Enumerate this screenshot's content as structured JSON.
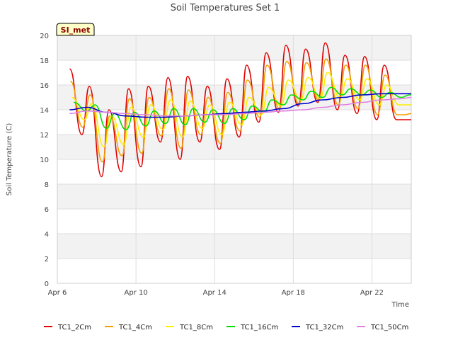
{
  "chart_data": {
    "type": "line",
    "title": "Soil Temperatures Set 1",
    "xlabel": "Time",
    "ylabel": "Soil Temperature (C)",
    "site_label": "SI_met",
    "xlim": [
      "2023-04-06",
      "2023-04-24"
    ],
    "ylim": [
      0,
      20
    ],
    "x_ticks": [
      "Apr 6",
      "Apr 10",
      "Apr 14",
      "Apr 18",
      "Apr 22"
    ],
    "y_ticks": [
      0,
      2,
      4,
      6,
      8,
      10,
      12,
      14,
      16,
      18,
      20
    ],
    "grid": true,
    "background": "alternating grey bands",
    "legend": "bottom",
    "series": [
      {
        "name": "TC1_2Cm",
        "color": "#e00000",
        "x": [
          "2023-04-06 15:00",
          "2023-04-07 06:00",
          "2023-04-07 15:00",
          "2023-04-08 06:00",
          "2023-04-08 15:00",
          "2023-04-09 06:00",
          "2023-04-09 15:00",
          "2023-04-10 06:00",
          "2023-04-10 15:00",
          "2023-04-11 06:00",
          "2023-04-11 15:00",
          "2023-04-12 06:00",
          "2023-04-12 15:00",
          "2023-04-13 06:00",
          "2023-04-13 15:00",
          "2023-04-14 06:00",
          "2023-04-14 15:00",
          "2023-04-15 06:00",
          "2023-04-15 15:00",
          "2023-04-16 06:00",
          "2023-04-16 15:00",
          "2023-04-17 06:00",
          "2023-04-17 15:00",
          "2023-04-18 06:00",
          "2023-04-18 15:00",
          "2023-04-19 06:00",
          "2023-04-19 15:00",
          "2023-04-20 06:00",
          "2023-04-20 15:00",
          "2023-04-21 06:00",
          "2023-04-21 15:00",
          "2023-04-22 06:00",
          "2023-04-22 15:00",
          "2023-04-23 06:00",
          "2023-04-23 15:00",
          "2023-04-24 00:00"
        ],
        "y": [
          17.3,
          12.0,
          15.9,
          8.6,
          14.0,
          9.0,
          15.7,
          9.4,
          15.9,
          11.4,
          16.6,
          10.0,
          16.7,
          11.4,
          15.9,
          10.8,
          16.5,
          11.8,
          17.6,
          13.0,
          18.6,
          13.8,
          19.2,
          14.3,
          18.9,
          14.6,
          19.4,
          14.0,
          18.4,
          13.7,
          18.3,
          13.2,
          17.6,
          13.2,
          13.2,
          13.2
        ]
      },
      {
        "name": "TC1_4Cm",
        "color": "#f0a000",
        "x": [
          "2023-04-06 16:00",
          "2023-04-07 07:00",
          "2023-04-07 16:00",
          "2023-04-08 07:00",
          "2023-04-08 16:00",
          "2023-04-09 07:00",
          "2023-04-09 16:00",
          "2023-04-10 07:00",
          "2023-04-10 16:00",
          "2023-04-11 07:00",
          "2023-04-11 16:00",
          "2023-04-12 07:00",
          "2023-04-12 16:00",
          "2023-04-13 07:00",
          "2023-04-13 16:00",
          "2023-04-14 07:00",
          "2023-04-14 16:00",
          "2023-04-15 07:00",
          "2023-04-15 16:00",
          "2023-04-16 07:00",
          "2023-04-16 16:00",
          "2023-04-17 07:00",
          "2023-04-17 16:00",
          "2023-04-18 07:00",
          "2023-04-18 16:00",
          "2023-04-19 07:00",
          "2023-04-19 16:00",
          "2023-04-20 07:00",
          "2023-04-20 16:00",
          "2023-04-21 07:00",
          "2023-04-21 16:00",
          "2023-04-22 07:00",
          "2023-04-22 16:00",
          "2023-04-23 07:00",
          "2023-04-23 16:00",
          "2023-04-24 00:00"
        ],
        "y": [
          16.3,
          12.6,
          15.2,
          9.8,
          13.5,
          10.3,
          14.9,
          10.5,
          15.0,
          11.9,
          15.7,
          10.9,
          15.6,
          12.0,
          15.0,
          11.3,
          15.4,
          12.3,
          16.4,
          13.4,
          17.6,
          14.1,
          17.9,
          14.5,
          17.8,
          14.8,
          18.1,
          14.4,
          17.6,
          14.1,
          17.6,
          13.6,
          16.8,
          13.6,
          13.6,
          13.7
        ]
      },
      {
        "name": "TC1_8Cm",
        "color": "#ffee00",
        "x": [
          "2023-04-06 18:00",
          "2023-04-07 09:00",
          "2023-04-07 18:00",
          "2023-04-08 09:00",
          "2023-04-08 18:00",
          "2023-04-09 09:00",
          "2023-04-09 18:00",
          "2023-04-10 09:00",
          "2023-04-10 18:00",
          "2023-04-11 09:00",
          "2023-04-11 18:00",
          "2023-04-12 09:00",
          "2023-04-12 18:00",
          "2023-04-13 09:00",
          "2023-04-13 18:00",
          "2023-04-14 09:00",
          "2023-04-14 18:00",
          "2023-04-15 09:00",
          "2023-04-15 18:00",
          "2023-04-16 09:00",
          "2023-04-16 18:00",
          "2023-04-17 09:00",
          "2023-04-17 18:00",
          "2023-04-18 09:00",
          "2023-04-18 18:00",
          "2023-04-19 09:00",
          "2023-04-19 18:00",
          "2023-04-20 09:00",
          "2023-04-20 18:00",
          "2023-04-21 09:00",
          "2023-04-21 18:00",
          "2023-04-22 09:00",
          "2023-04-22 18:00",
          "2023-04-23 09:00",
          "2023-04-23 18:00",
          "2023-04-24 00:00"
        ],
        "y": [
          15.0,
          13.2,
          14.5,
          11.0,
          13.5,
          11.2,
          14.2,
          11.8,
          14.4,
          12.4,
          14.8,
          11.8,
          14.7,
          12.5,
          14.4,
          12.0,
          14.6,
          12.8,
          15.0,
          13.6,
          15.8,
          14.3,
          16.4,
          14.8,
          16.6,
          14.9,
          17.0,
          15.0,
          16.5,
          14.8,
          16.5,
          14.4,
          16.0,
          14.4,
          14.4,
          14.4
        ]
      },
      {
        "name": "TC1_16Cm",
        "color": "#00dd00",
        "x": [
          "2023-04-06 20:00",
          "2023-04-07 12:00",
          "2023-04-07 22:00",
          "2023-04-08 12:00",
          "2023-04-08 22:00",
          "2023-04-09 12:00",
          "2023-04-09 22:00",
          "2023-04-10 12:00",
          "2023-04-10 22:00",
          "2023-04-11 12:00",
          "2023-04-11 22:00",
          "2023-04-12 12:00",
          "2023-04-12 22:00",
          "2023-04-13 12:00",
          "2023-04-13 22:00",
          "2023-04-14 12:00",
          "2023-04-14 22:00",
          "2023-04-15 12:00",
          "2023-04-15 22:00",
          "2023-04-16 12:00",
          "2023-04-16 22:00",
          "2023-04-17 12:00",
          "2023-04-17 22:00",
          "2023-04-18 12:00",
          "2023-04-18 22:00",
          "2023-04-19 12:00",
          "2023-04-19 22:00",
          "2023-04-20 12:00",
          "2023-04-20 22:00",
          "2023-04-21 12:00",
          "2023-04-21 22:00",
          "2023-04-22 12:00",
          "2023-04-22 22:00",
          "2023-04-23 12:00",
          "2023-04-23 22:00",
          "2023-04-24 00:00"
        ],
        "y": [
          14.6,
          13.9,
          14.4,
          12.5,
          13.7,
          12.4,
          13.8,
          12.7,
          13.9,
          12.9,
          14.1,
          12.8,
          14.1,
          13.0,
          14.0,
          12.9,
          14.1,
          13.2,
          14.3,
          13.8,
          14.8,
          14.4,
          15.2,
          14.8,
          15.5,
          15.0,
          15.8,
          15.2,
          15.7,
          15.2,
          15.6,
          15.0,
          15.4,
          15.0,
          15.2,
          15.2
        ]
      },
      {
        "name": "TC1_32Cm",
        "color": "#0000cc",
        "x": [
          "2023-04-06 15:00",
          "2023-04-07 12:00",
          "2023-04-08 12:00",
          "2023-04-09 12:00",
          "2023-04-10 12:00",
          "2023-04-11 12:00",
          "2023-04-12 12:00",
          "2023-04-13 12:00",
          "2023-04-14 12:00",
          "2023-04-15 12:00",
          "2023-04-16 12:00",
          "2023-04-17 12:00",
          "2023-04-18 12:00",
          "2023-04-19 12:00",
          "2023-04-20 12:00",
          "2023-04-21 12:00",
          "2023-04-22 12:00",
          "2023-04-23 12:00",
          "2023-04-24 00:00"
        ],
        "y": [
          14.0,
          14.2,
          13.8,
          13.5,
          13.4,
          13.4,
          13.5,
          13.6,
          13.7,
          13.8,
          13.9,
          14.1,
          14.5,
          14.8,
          15.0,
          15.2,
          15.3,
          15.3,
          15.3
        ]
      },
      {
        "name": "TC1_50Cm",
        "color": "#e080e0",
        "x": [
          "2023-04-06 15:00",
          "2023-04-07 12:00",
          "2023-04-08 12:00",
          "2023-04-09 12:00",
          "2023-04-10 12:00",
          "2023-04-11 12:00",
          "2023-04-12 12:00",
          "2023-04-13 12:00",
          "2023-04-14 12:00",
          "2023-04-15 12:00",
          "2023-04-16 12:00",
          "2023-04-17 12:00",
          "2023-04-18 12:00",
          "2023-04-19 12:00",
          "2023-04-20 12:00",
          "2023-04-21 12:00",
          "2023-04-22 12:00",
          "2023-04-23 12:00",
          "2023-04-24 00:00"
        ],
        "y": [
          13.7,
          13.9,
          13.8,
          13.7,
          13.6,
          13.5,
          13.5,
          13.6,
          13.6,
          13.7,
          13.8,
          13.9,
          14.0,
          14.2,
          14.4,
          14.6,
          14.8,
          14.9,
          15.0
        ]
      }
    ]
  }
}
